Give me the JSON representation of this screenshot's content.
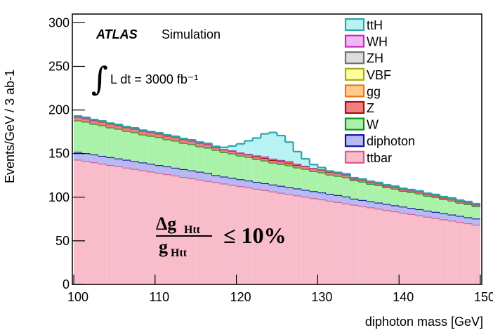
{
  "chart_data": {
    "type": "stacked_histogram",
    "y_label": "Events/GeV / 3 ab-1",
    "x_label": "diphoton mass [GeV]",
    "experiment": "ATLAS",
    "experiment_sub": "Simulation",
    "integral_sign": "∫",
    "luminosity": "L dt = 3000 fb⁻¹",
    "formula": {
      "numerator": "Δg",
      "numerator_sub": "Htt",
      "denominator": "g",
      "denominator_sub": "Htt",
      "relation": "≤ 10%"
    },
    "bins": [
      100,
      101,
      102,
      103,
      104,
      105,
      106,
      107,
      108,
      109,
      110,
      111,
      112,
      113,
      114,
      115,
      116,
      117,
      118,
      119,
      120,
      121,
      122,
      123,
      124,
      125,
      126,
      127,
      128,
      129,
      130,
      131,
      132,
      133,
      134,
      135,
      136,
      137,
      138,
      139,
      140,
      141,
      142,
      143,
      144,
      145,
      146,
      147,
      148,
      149,
      150
    ],
    "series": [
      {
        "name": "ttH",
        "color": "#2aa7a7",
        "fill": "#b8f2f2",
        "values": [
          0.5,
          0.5,
          0.5,
          0.5,
          0.5,
          0.5,
          0.5,
          0.5,
          0.5,
          0.5,
          0.5,
          0.5,
          0.5,
          0.5,
          0.5,
          0.5,
          0.5,
          0.5,
          2,
          5,
          10,
          15,
          20,
          26,
          30,
          28,
          22,
          14,
          8,
          4,
          2,
          0.5,
          0.5,
          0.5,
          0.5,
          0.5,
          0.5,
          0.5,
          0.5,
          0.5,
          0.5,
          0.5,
          0.5,
          0.5,
          0.5,
          0.5,
          0.5,
          0.5,
          0.5,
          0.5
        ]
      },
      {
        "name": "WH",
        "color": "#c030c0",
        "fill": "#f0b8f0",
        "values": [
          0.1,
          0.1,
          0.1,
          0.1,
          0.1,
          0.1,
          0.1,
          0.1,
          0.1,
          0.1,
          0.1,
          0.1,
          0.1,
          0.1,
          0.1,
          0.1,
          0.1,
          0.1,
          0.1,
          0.1,
          0.1,
          0.1,
          0.1,
          0.1,
          0.1,
          0.1,
          0.1,
          0.1,
          0.1,
          0.1,
          0.1,
          0.1,
          0.1,
          0.1,
          0.1,
          0.1,
          0.1,
          0.1,
          0.1,
          0.1,
          0.1,
          0.1,
          0.1,
          0.1,
          0.1,
          0.1,
          0.1,
          0.1,
          0.1,
          0.1
        ]
      },
      {
        "name": "ZH",
        "color": "#707070",
        "fill": "#dddddd",
        "values": [
          0.1,
          0.1,
          0.1,
          0.1,
          0.1,
          0.1,
          0.1,
          0.1,
          0.1,
          0.1,
          0.1,
          0.1,
          0.1,
          0.1,
          0.1,
          0.1,
          0.1,
          0.1,
          0.1,
          0.1,
          0.1,
          0.1,
          0.1,
          0.1,
          0.1,
          0.1,
          0.1,
          0.1,
          0.1,
          0.1,
          0.1,
          0.1,
          0.1,
          0.1,
          0.1,
          0.1,
          0.1,
          0.1,
          0.1,
          0.1,
          0.1,
          0.1,
          0.1,
          0.1,
          0.1,
          0.1,
          0.1,
          0.1,
          0.1,
          0.1
        ]
      },
      {
        "name": "VBF",
        "color": "#a8a820",
        "fill": "#ffff99",
        "values": [
          0.1,
          0.1,
          0.1,
          0.1,
          0.1,
          0.1,
          0.1,
          0.1,
          0.1,
          0.1,
          0.1,
          0.1,
          0.1,
          0.1,
          0.1,
          0.1,
          0.1,
          0.1,
          0.1,
          0.1,
          0.1,
          0.1,
          0.1,
          0.5,
          0.5,
          0.5,
          0.5,
          0.1,
          0.1,
          0.1,
          0.1,
          0.1,
          0.1,
          0.1,
          0.1,
          0.1,
          0.1,
          0.1,
          0.1,
          0.1,
          0.1,
          0.1,
          0.1,
          0.1,
          0.1,
          0.1,
          0.1,
          0.1,
          0.1,
          0.1
        ]
      },
      {
        "name": "gg",
        "color": "#e07a20",
        "fill": "#ffcc88",
        "values": [
          0.3,
          0.3,
          0.3,
          0.3,
          0.3,
          0.3,
          0.3,
          0.3,
          0.3,
          0.3,
          0.3,
          0.3,
          0.3,
          0.3,
          0.3,
          0.3,
          0.3,
          0.3,
          0.3,
          0.3,
          0.3,
          0.3,
          1,
          1,
          1,
          1,
          1,
          1,
          0.3,
          0.3,
          0.3,
          0.3,
          0.3,
          0.3,
          0.3,
          0.3,
          0.3,
          0.3,
          0.3,
          0.3,
          0.3,
          0.3,
          0.3,
          0.3,
          0.3,
          0.3,
          0.3,
          0.3,
          0.3,
          0.3
        ]
      },
      {
        "name": "Z",
        "color": "#a81010",
        "fill": "#f08080",
        "values": [
          4,
          4,
          4,
          4,
          4,
          4,
          4,
          4,
          4,
          4,
          4,
          4,
          4,
          4,
          4,
          4,
          4,
          3,
          3,
          3,
          3,
          3,
          3,
          3,
          3,
          3,
          3,
          3,
          3,
          3,
          3,
          3,
          3,
          3,
          2,
          2,
          2,
          2,
          2,
          2,
          2,
          2,
          2,
          2,
          2,
          2,
          2,
          2,
          2,
          2
        ]
      },
      {
        "name": "W",
        "color": "#109010",
        "fill": "#aaf2aa",
        "values": [
          36,
          36,
          35,
          35,
          34,
          34,
          33,
          33,
          32,
          32,
          32,
          31,
          31,
          30,
          30,
          29,
          29,
          29,
          28,
          28,
          27,
          27,
          26,
          26,
          25,
          25,
          25,
          24,
          24,
          23,
          23,
          22,
          22,
          22,
          21,
          21,
          20,
          20,
          19,
          19,
          18,
          18,
          18,
          17,
          17,
          16,
          16,
          15,
          15,
          14
        ]
      },
      {
        "name": "diphoton",
        "color": "#1010a0",
        "fill": "#b8b8f2",
        "values": [
          9,
          9,
          9,
          9,
          9,
          9,
          9,
          9,
          9,
          9,
          9,
          9,
          9,
          9,
          9,
          9,
          9,
          8,
          8,
          8,
          8,
          8,
          8,
          8,
          8,
          8,
          8,
          8,
          8,
          8,
          8,
          8,
          8,
          8,
          7,
          7,
          7,
          7,
          7,
          7,
          7,
          7,
          7,
          7,
          7,
          7,
          7,
          7,
          7,
          7
        ]
      },
      {
        "name": "ttbar",
        "color": "#d85890",
        "fill": "#f8bccb",
        "values": [
          143,
          141.5,
          140,
          138.4,
          136.9,
          135.4,
          133.9,
          132.4,
          130.8,
          129.3,
          127.8,
          126.3,
          124.8,
          123.2,
          121.7,
          120.2,
          118.7,
          117.2,
          115.6,
          114.1,
          112.6,
          111.1,
          109.6,
          108,
          106.5,
          105,
          103.5,
          102,
          100.4,
          98.9,
          97.4,
          95.9,
          94.4,
          92.8,
          91.3,
          89.8,
          88.3,
          86.8,
          85.2,
          83.7,
          82.2,
          80.7,
          79.2,
          77.6,
          76.1,
          74.6,
          73.1,
          71.6,
          70,
          68.5
        ]
      }
    ],
    "xlim": [
      100,
      150
    ],
    "xticks": [
      100,
      110,
      120,
      130,
      140,
      150
    ],
    "ylim": [
      0,
      310
    ],
    "yticks": [
      0,
      50,
      100,
      150,
      200,
      250,
      300
    ],
    "legend": "top-right"
  }
}
